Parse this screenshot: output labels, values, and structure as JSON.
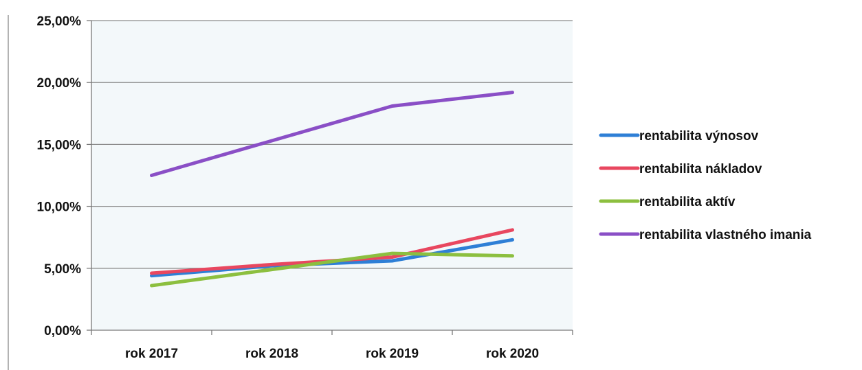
{
  "chart_data": {
    "type": "line",
    "categories": [
      "rok 2017",
      "rok 2018",
      "rok 2019",
      "rok 2020"
    ],
    "y_tick_labels": [
      "0,00%",
      "5,00%",
      "10,00%",
      "15,00%",
      "20,00%",
      "25,00%"
    ],
    "ylim": [
      0,
      25
    ],
    "grid": true,
    "legend_position": "right",
    "plot_background": "#f3f8fa",
    "gridline_color": "#8c8c8c",
    "series": [
      {
        "name": "rentabilita výnosov",
        "color": "#2e7fd6",
        "values": [
          4.4,
          5.2,
          5.6,
          7.3
        ]
      },
      {
        "name": "rentabilita nákladov",
        "color": "#e8475f",
        "values": [
          4.6,
          5.3,
          5.9,
          8.1
        ]
      },
      {
        "name": "rentabilita aktív",
        "color": "#8cbf3f",
        "values": [
          3.6,
          4.9,
          6.2,
          6.0
        ]
      },
      {
        "name": "rentabilita vlastného imania",
        "color": "#8a4fc6",
        "values": [
          12.5,
          15.3,
          18.1,
          19.2
        ]
      }
    ]
  }
}
